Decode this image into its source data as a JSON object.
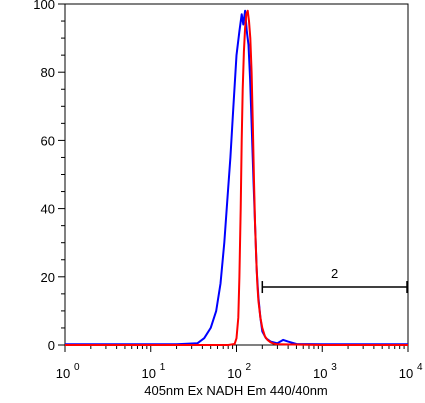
{
  "chart_data": {
    "type": "line",
    "title": "",
    "xlabel": "405nm Ex NADH Em 440/40nm",
    "ylabel": "",
    "x_scale": "log",
    "xlim": [
      1,
      10000
    ],
    "ylim": [
      0,
      100
    ],
    "x_ticks": [
      {
        "value": 1,
        "base": "10",
        "exp": "0"
      },
      {
        "value": 10,
        "base": "10",
        "exp": "1"
      },
      {
        "value": 100,
        "base": "10",
        "exp": "2"
      },
      {
        "value": 1000,
        "base": "10",
        "exp": "3"
      },
      {
        "value": 10000,
        "base": "10",
        "exp": "4"
      }
    ],
    "y_ticks": [
      "0",
      "20",
      "40",
      "60",
      "80",
      "100"
    ],
    "grid": false,
    "legend": null,
    "series": [
      {
        "color": "#0000ff",
        "x": [
          1,
          20,
          35,
          42,
          50,
          58,
          65,
          72,
          78,
          85,
          92,
          100,
          108,
          115,
          120,
          126,
          132,
          138,
          144,
          150,
          158,
          165,
          172,
          180,
          190,
          200,
          220,
          250,
          300,
          350,
          400,
          500,
          1000,
          10000
        ],
        "y": [
          0.2,
          0.2,
          0.5,
          2,
          5,
          10,
          18,
          30,
          42,
          55,
          70,
          85,
          92,
          97,
          94,
          98,
          92,
          88,
          78,
          65,
          48,
          35,
          22,
          14,
          8,
          4,
          2,
          1,
          0.5,
          1.5,
          1,
          0.3,
          0.2,
          0.2
        ]
      },
      {
        "color": "#ff0000",
        "x": [
          1,
          80,
          95,
          100,
          105,
          108,
          112,
          115,
          118,
          122,
          126,
          130,
          135,
          140,
          145,
          150,
          155,
          160,
          165,
          170,
          175,
          180,
          190,
          200,
          215,
          230,
          250,
          270,
          300,
          1000,
          10000
        ],
        "y": [
          0,
          0,
          0.3,
          2,
          8,
          20,
          40,
          60,
          75,
          86,
          93,
          97,
          98,
          95,
          90,
          80,
          65,
          48,
          35,
          25,
          18,
          13,
          8,
          5,
          2.5,
          1.5,
          0.8,
          0.4,
          0.2,
          0,
          0
        ]
      }
    ],
    "annotations": [
      {
        "label": "2",
        "x_start": 200,
        "x_end": 10000,
        "y": 17
      }
    ]
  }
}
